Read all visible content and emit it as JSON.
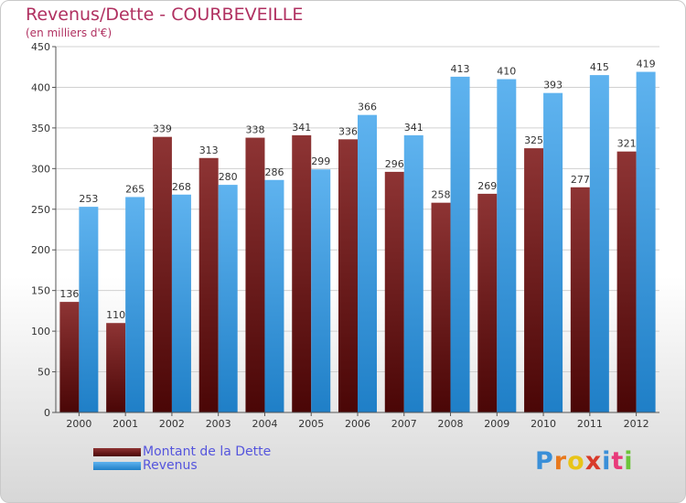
{
  "header": {
    "title": "Revenus/Dette - COURBEVEILLE",
    "subtitle": "(en milliers d'€)"
  },
  "colors": {
    "dette": "#7a1515",
    "revenus": "#3d9ee6",
    "title": "#b03060",
    "legend_text": "#5555dd"
  },
  "logo": {
    "text": "Proxiti",
    "letter_colors": [
      "#3a8fd8",
      "#e8791d",
      "#e8c418",
      "#d83a2a",
      "#3a8fd8",
      "#e83a7a",
      "#6cc43a"
    ]
  },
  "chart_data": {
    "type": "bar",
    "title": "Revenus/Dette - COURBEVEILLE",
    "subtitle": "(en milliers d'€)",
    "categories": [
      "2000",
      "2001",
      "2002",
      "2003",
      "2004",
      "2005",
      "2006",
      "2007",
      "2008",
      "2009",
      "2010",
      "2011",
      "2012"
    ],
    "series": [
      {
        "name": "Montant de la Dette",
        "values": [
          136,
          110,
          339,
          313,
          338,
          341,
          336,
          296,
          258,
          269,
          325,
          277,
          321
        ]
      },
      {
        "name": "Revenus",
        "values": [
          253,
          265,
          268,
          280,
          286,
          299,
          366,
          341,
          413,
          410,
          393,
          415,
          419
        ]
      }
    ],
    "ylim": [
      0,
      450
    ],
    "yticks": [
      0,
      50,
      100,
      150,
      200,
      250,
      300,
      350,
      400,
      450
    ],
    "grid": true,
    "legend_position": "bottom-left"
  }
}
